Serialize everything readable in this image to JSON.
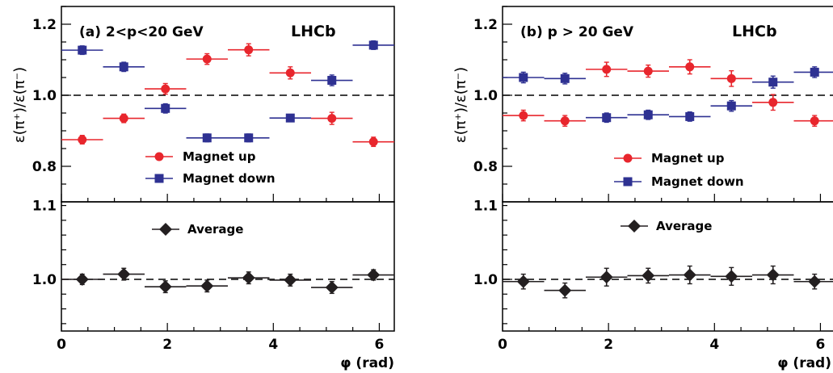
{
  "chart_data": [
    {
      "type": "scatter",
      "panel_label": "(a) 2<p<20 GeV",
      "watermark": "LHCb",
      "xlabel": "φ (rad)",
      "xlim": [
        0,
        6.283
      ],
      "x_ticks": [
        0,
        2,
        4,
        6
      ],
      "x_bin_width": 0.785,
      "upper": {
        "ylabel": "ε(π⁺)/ε(π⁻)",
        "ylim": [
          0.7,
          1.25
        ],
        "y_ticks": [
          0.8,
          1.0,
          1.2
        ],
        "y_tick_labels": [
          "0.8",
          "1.0",
          "1.2"
        ],
        "reference_line": 1.0,
        "series": [
          {
            "name": "Magnet up",
            "color": "#e8262d",
            "marker": "circle",
            "x": [
              0.393,
              1.178,
              1.963,
              2.749,
              3.534,
              4.32,
              5.105,
              5.89
            ],
            "y": [
              0.875,
              0.935,
              1.018,
              1.102,
              1.128,
              1.063,
              0.935,
              0.869
            ],
            "err": [
              0.012,
              0.012,
              0.015,
              0.015,
              0.017,
              0.017,
              0.017,
              0.013
            ]
          },
          {
            "name": "Magnet down",
            "color": "#2e3192",
            "marker": "square",
            "x": [
              0.393,
              1.178,
              1.963,
              2.749,
              3.534,
              4.32,
              5.105,
              5.89
            ],
            "y": [
              1.127,
              1.08,
              0.963,
              0.88,
              0.88,
              0.936,
              1.042,
              1.141
            ],
            "err": [
              0.012,
              0.013,
              0.013,
              0.011,
              0.011,
              0.009,
              0.015,
              0.012
            ]
          }
        ]
      },
      "lower": {
        "ylim": [
          0.93,
          1.105
        ],
        "y_ticks": [
          1.0,
          1.1
        ],
        "y_tick_labels": [
          "1.0",
          "1.1"
        ],
        "reference_line": 1.0,
        "series": [
          {
            "name": "Average",
            "color": "#231f20",
            "marker": "diamond",
            "x": [
              0.393,
              1.178,
              1.963,
              2.749,
              3.534,
              4.32,
              5.105,
              5.89
            ],
            "y": [
              1.0,
              1.007,
              0.99,
              0.991,
              1.002,
              0.999,
              0.989,
              1.006
            ],
            "err": [
              0.007,
              0.008,
              0.008,
              0.008,
              0.008,
              0.008,
              0.008,
              0.007
            ]
          }
        ]
      }
    },
    {
      "type": "scatter",
      "panel_label": "(b)  p > 20 GeV",
      "watermark": "LHCb",
      "xlabel": "φ (rad)",
      "xlim": [
        0,
        6.283
      ],
      "x_ticks": [
        0,
        2,
        4,
        6
      ],
      "x_bin_width": 0.785,
      "upper": {
        "ylabel": "ε(π⁺)/ε(π⁻)",
        "ylim": [
          0.7,
          1.25
        ],
        "y_ticks": [
          0.8,
          1.0,
          1.2
        ],
        "y_tick_labels": [
          "0.8",
          "1.0",
          "1.2"
        ],
        "reference_line": 1.0,
        "series": [
          {
            "name": "Magnet up",
            "color": "#e8262d",
            "marker": "circle",
            "x": [
              0.393,
              1.178,
              1.963,
              2.749,
              3.534,
              4.32,
              5.105,
              5.89
            ],
            "y": [
              0.943,
              0.928,
              1.073,
              1.068,
              1.08,
              1.047,
              0.98,
              0.928
            ],
            "err": [
              0.015,
              0.015,
              0.02,
              0.017,
              0.02,
              0.022,
              0.022,
              0.015
            ]
          },
          {
            "name": "Magnet down",
            "color": "#2e3192",
            "marker": "square",
            "x": [
              0.393,
              1.178,
              1.963,
              2.749,
              3.534,
              4.32,
              5.105,
              5.89
            ],
            "y": [
              1.05,
              1.047,
              0.937,
              0.945,
              0.94,
              0.97,
              1.037,
              1.065
            ],
            "err": [
              0.015,
              0.015,
              0.013,
              0.013,
              0.013,
              0.015,
              0.017,
              0.015
            ]
          }
        ]
      },
      "lower": {
        "ylim": [
          0.93,
          1.105
        ],
        "y_ticks": [
          1.0,
          1.1
        ],
        "y_tick_labels": [
          "1.0",
          "1.1"
        ],
        "reference_line": 1.0,
        "series": [
          {
            "name": "Average",
            "color": "#231f20",
            "marker": "diamond",
            "x": [
              0.393,
              1.178,
              1.963,
              2.749,
              3.534,
              4.32,
              5.105,
              5.89
            ],
            "y": [
              0.997,
              0.985,
              1.003,
              1.005,
              1.006,
              1.004,
              1.006,
              0.997
            ],
            "err": [
              0.01,
              0.01,
              0.012,
              0.01,
              0.012,
              0.012,
              0.012,
              0.01
            ]
          }
        ]
      }
    }
  ]
}
